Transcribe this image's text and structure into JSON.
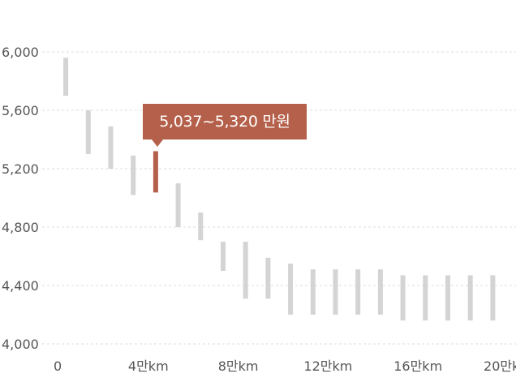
{
  "chart_data": {
    "type": "range-bar",
    "title": "",
    "xlabel": "",
    "ylabel": "",
    "ylim": [
      4000,
      6000
    ],
    "xlim": [
      0,
      21
    ],
    "y_ticks": [
      4000,
      4400,
      4800,
      5200,
      5600,
      6000
    ],
    "y_tick_labels": [
      "4,000",
      "4,400",
      "4,800",
      "5,200",
      "5,600",
      "6,000"
    ],
    "x_ticks": [
      0,
      4,
      8,
      12,
      16,
      20
    ],
    "x_tick_labels": [
      "0",
      "4만km",
      "8만km",
      "12만km",
      "16만km",
      "20만km"
    ],
    "grid": true,
    "bar_color": "#d4d4d4",
    "highlight_color": "#b5604a",
    "highlight_index": 4,
    "series": [
      {
        "x": 0.4,
        "low": 5700,
        "high": 5960
      },
      {
        "x": 1.4,
        "low": 5300,
        "high": 5600
      },
      {
        "x": 2.4,
        "low": 5200,
        "high": 5490
      },
      {
        "x": 3.4,
        "low": 5020,
        "high": 5290
      },
      {
        "x": 4.4,
        "low": 5037,
        "high": 5320
      },
      {
        "x": 5.4,
        "low": 4800,
        "high": 5100
      },
      {
        "x": 6.4,
        "low": 4710,
        "high": 4900
      },
      {
        "x": 7.4,
        "low": 4500,
        "high": 4700
      },
      {
        "x": 8.4,
        "low": 4310,
        "high": 4700
      },
      {
        "x": 9.4,
        "low": 4310,
        "high": 4590
      },
      {
        "x": 10.4,
        "low": 4200,
        "high": 4550
      },
      {
        "x": 11.4,
        "low": 4200,
        "high": 4510
      },
      {
        "x": 12.4,
        "low": 4200,
        "high": 4510
      },
      {
        "x": 13.4,
        "low": 4200,
        "high": 4510
      },
      {
        "x": 14.4,
        "low": 4200,
        "high": 4510
      },
      {
        "x": 15.4,
        "low": 4160,
        "high": 4470
      },
      {
        "x": 16.4,
        "low": 4160,
        "high": 4470
      },
      {
        "x": 17.4,
        "low": 4160,
        "high": 4470
      },
      {
        "x": 18.4,
        "low": 4160,
        "high": 4470
      },
      {
        "x": 19.4,
        "low": 4160,
        "high": 4470
      }
    ],
    "tooltip": {
      "text": "5,037~5,320 만원"
    }
  }
}
